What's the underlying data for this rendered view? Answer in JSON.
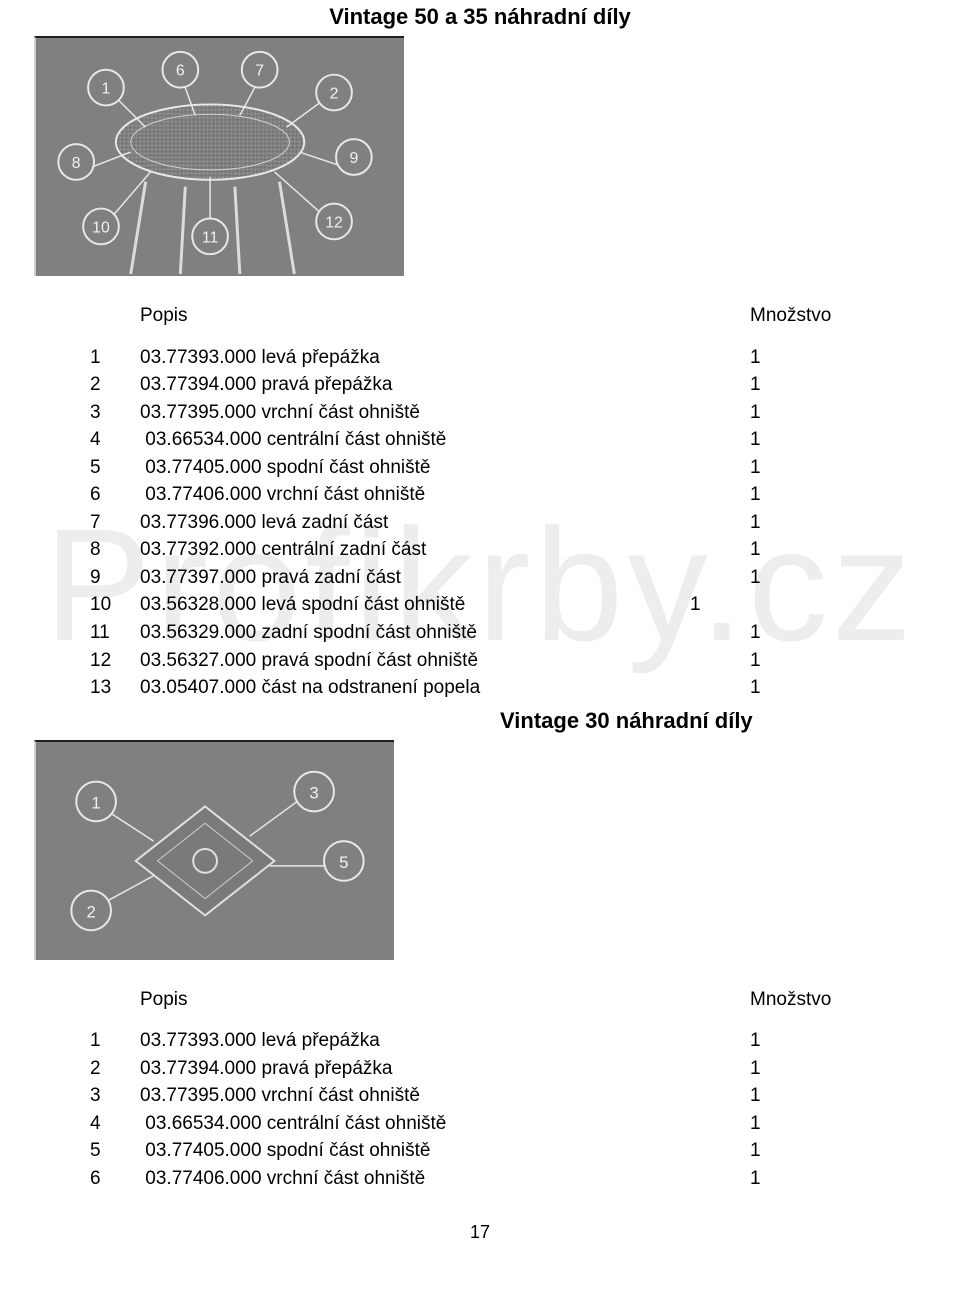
{
  "title1": "Vintage 50 a 35 náhradní díly",
  "title2": "Vintage 30 náhradní díly",
  "watermark": "Profikrby.cz",
  "columns": {
    "popis": "Popis",
    "mnozstvo": "Množstvo"
  },
  "table1": [
    {
      "n": "1",
      "code": "03.77393.000",
      "desc": "levá přepážka",
      "qty": "1"
    },
    {
      "n": "2",
      "code": "03.77394.000",
      "desc": "pravá přepážka",
      "qty": "1"
    },
    {
      "n": "3",
      "code": "03.77395.000",
      "desc": "vrchní část ohniště",
      "qty": "1"
    },
    {
      "n": "4",
      "code": "03.66534.000",
      "desc": "centrální část ohniště",
      "qty": "1"
    },
    {
      "n": "5",
      "code": "03.77405.000",
      "desc": "spodní část ohniště",
      "qty": "1"
    },
    {
      "n": "6",
      "code": "03.77406.000",
      "desc": "vrchní část ohniště",
      "qty": "1"
    },
    {
      "n": "7",
      "code": "03.77396.000",
      "desc": "levá zadní část",
      "qty": "1"
    },
    {
      "n": "8",
      "code": "03.77392.000",
      "desc": "centrální zadní část",
      "qty": "1"
    },
    {
      "n": "9",
      "code": "03.77397.000",
      "desc": "pravá zadní část",
      "qty": "1"
    },
    {
      "n": "10",
      "code": "03.56328.000",
      "desc": "levá spodní část ohniště",
      "qty": "1"
    },
    {
      "n": "11",
      "code": "03.56329.000",
      "desc": "zadní spodní část ohniště",
      "qty": "1"
    },
    {
      "n": "12",
      "code": "03.56327.000",
      "desc": "pravá spodní část ohniště",
      "qty": "1"
    },
    {
      "n": "13",
      "code": "03.05407.000",
      "desc": "část na odstranení popela",
      "qty": "1"
    }
  ],
  "table2": [
    {
      "n": "1",
      "code": "03.77393.000",
      "desc": "levá přepážka",
      "qty": "1"
    },
    {
      "n": "2",
      "code": "03.77394.000",
      "desc": "pravá přepážka",
      "qty": "1"
    },
    {
      "n": "3",
      "code": "03.77395.000",
      "desc": "vrchní část ohniště",
      "qty": "1"
    },
    {
      "n": "4",
      "code": "03.66534.000",
      "desc": "centrální část ohniště",
      "qty": "1"
    },
    {
      "n": "5",
      "code": "03.77405.000",
      "desc": "spodní část ohniště",
      "qty": "1"
    },
    {
      "n": "6",
      "code": "03.77406.000",
      "desc": "vrchní část ohniště",
      "qty": "1"
    }
  ],
  "page_number": "17",
  "style": {
    "bg": "#ffffff",
    "text": "#000000",
    "diagram_bg": "#808080",
    "font_family": "Arial",
    "title_fontsize": 22,
    "body_fontsize": 19
  }
}
